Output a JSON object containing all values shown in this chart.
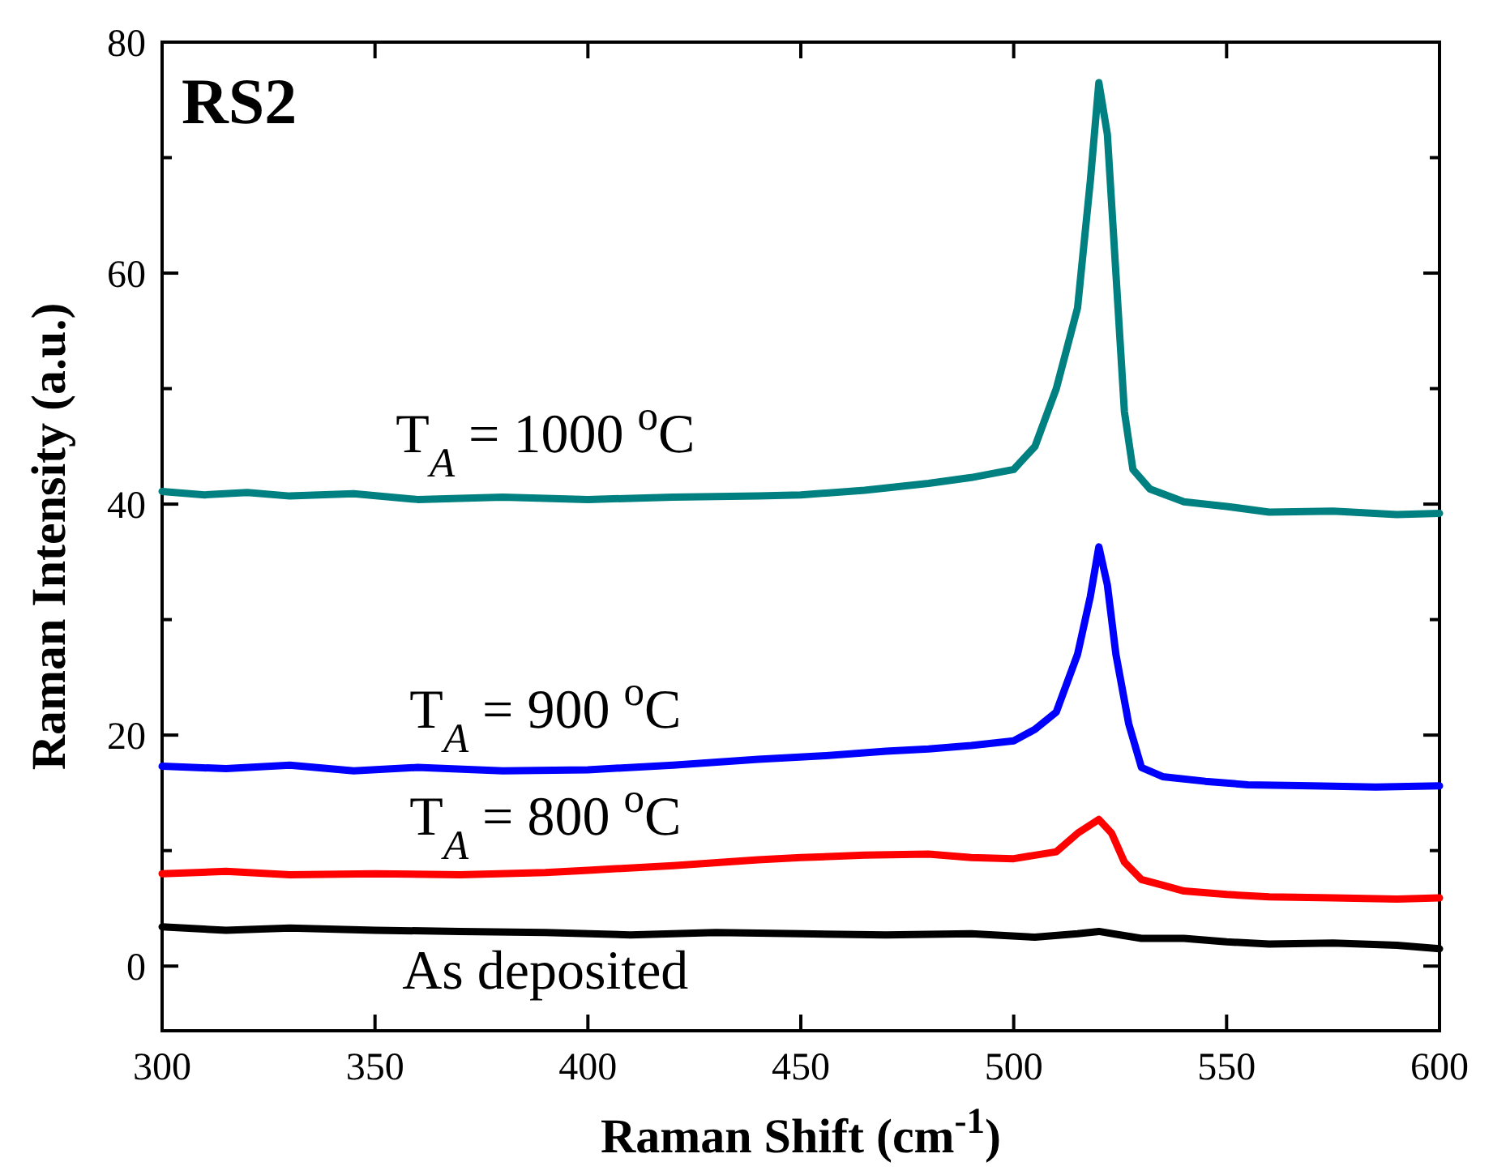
{
  "chart_data": {
    "type": "line",
    "title": "RS2",
    "xlabel": "Raman Shift (cm$^{-1}$)",
    "ylabel": "Raman Intensity (a.u.)",
    "xlim": [
      300,
      600
    ],
    "ylim": [
      -5.6,
      80
    ],
    "xticks": [
      300,
      350,
      400,
      450,
      500,
      550,
      600
    ],
    "yticks": [
      0,
      {
        "value": 10,
        "label": null
      },
      20,
      {
        "value": 30,
        "label": null
      },
      40,
      {
        "value": 50,
        "label": null
      },
      60,
      {
        "value": 70,
        "label": null
      },
      80
    ],
    "grid": false,
    "marker": "none",
    "line_style": "solid",
    "series": [
      {
        "name": "T$_{A}$ = 1000 $^{o}$C",
        "color": "#008080",
        "x": [
          300,
          310,
          320,
          330,
          345,
          360,
          380,
          400,
          420,
          440,
          450,
          465,
          480,
          490,
          500,
          505,
          510,
          515,
          518,
          520,
          522,
          524,
          526,
          528,
          532,
          540,
          550,
          560,
          575,
          590,
          600
        ],
        "values": [
          41.1,
          40.8,
          41,
          40.7,
          40.9,
          40.4,
          40.6,
          40.4,
          40.6,
          40.7,
          40.8,
          41.2,
          41.8,
          42.3,
          43,
          45,
          50,
          57,
          68,
          76.5,
          72,
          60,
          48,
          43,
          41.3,
          40.2,
          39.8,
          39.3,
          39.4,
          39.1,
          39.2
        ]
      },
      {
        "name": "T$_{A}$ = 900 $^{o}$C",
        "color": "#0000ff",
        "x": [
          300,
          315,
          330,
          345,
          360,
          380,
          400,
          420,
          440,
          455,
          470,
          480,
          490,
          500,
          505,
          510,
          515,
          518,
          520,
          522,
          524,
          527,
          530,
          535,
          545,
          555,
          570,
          585,
          600
        ],
        "values": [
          17.3,
          17.1,
          17.4,
          16.9,
          17.2,
          16.9,
          17,
          17.4,
          17.9,
          18.2,
          18.6,
          18.8,
          19.1,
          19.5,
          20.5,
          22,
          27,
          32,
          36.3,
          33,
          27,
          21,
          17.2,
          16.4,
          16,
          15.7,
          15.6,
          15.5,
          15.6
        ]
      },
      {
        "name": "T$_{A}$ = 800 $^{o}$C",
        "color": "#ff0000",
        "x": [
          300,
          315,
          330,
          350,
          370,
          390,
          400,
          420,
          440,
          450,
          465,
          480,
          490,
          500,
          510,
          515,
          520,
          523,
          526,
          530,
          535,
          540,
          550,
          560,
          575,
          590,
          600
        ],
        "values": [
          8,
          8.2,
          7.9,
          8,
          7.9,
          8.1,
          8.3,
          8.7,
          9.2,
          9.4,
          9.6,
          9.7,
          9.4,
          9.3,
          9.9,
          11.5,
          12.7,
          11.5,
          9,
          7.5,
          7,
          6.5,
          6.2,
          6,
          5.9,
          5.8,
          5.9
        ]
      },
      {
        "name": "As deposited",
        "color": "#000000",
        "x": [
          300,
          315,
          330,
          350,
          370,
          390,
          410,
          430,
          450,
          470,
          490,
          505,
          515,
          520,
          525,
          530,
          540,
          550,
          560,
          575,
          590,
          600
        ],
        "values": [
          3.4,
          3.1,
          3.3,
          3.1,
          3,
          2.9,
          2.7,
          2.9,
          2.8,
          2.7,
          2.8,
          2.5,
          2.8,
          3,
          2.7,
          2.4,
          2.4,
          2.1,
          1.9,
          2,
          1.8,
          1.5
        ]
      }
    ]
  }
}
